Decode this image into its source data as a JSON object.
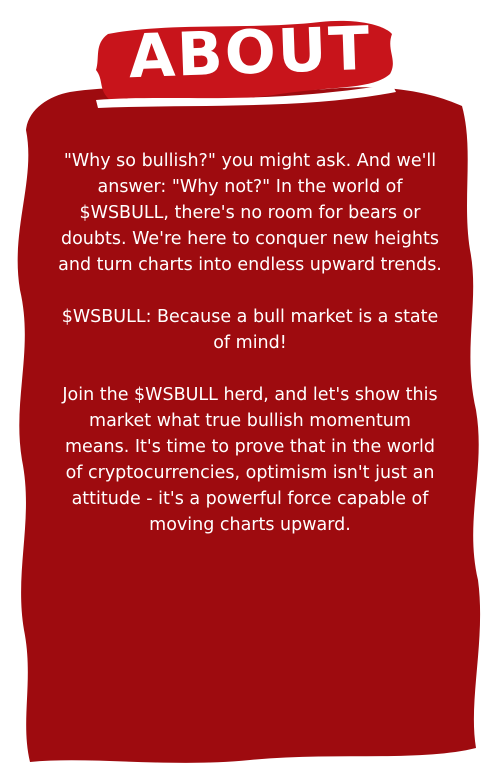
{
  "colors": {
    "background": "#ffffff",
    "panel": "#9e0b0f",
    "banner": "#c8141b",
    "text": "#ffffff"
  },
  "title": "ABOUT",
  "paragraphs": [
    "\"Why so bullish?\" you might ask. And we'll answer: \"Why not?\" In the world of $WSBULL, there's no room for bears or doubts. We're here to conquer new heights and turn charts into endless upward trends.",
    "$WSBULL: Because a bull market is a state of mind!",
    "Join the $WSBULL herd, and let's show this market what true bullish momentum means. It's time to prove that in the world of cryptocurrencies, optimism isn't just an attitude - it's a powerful force capable of moving charts upward."
  ]
}
